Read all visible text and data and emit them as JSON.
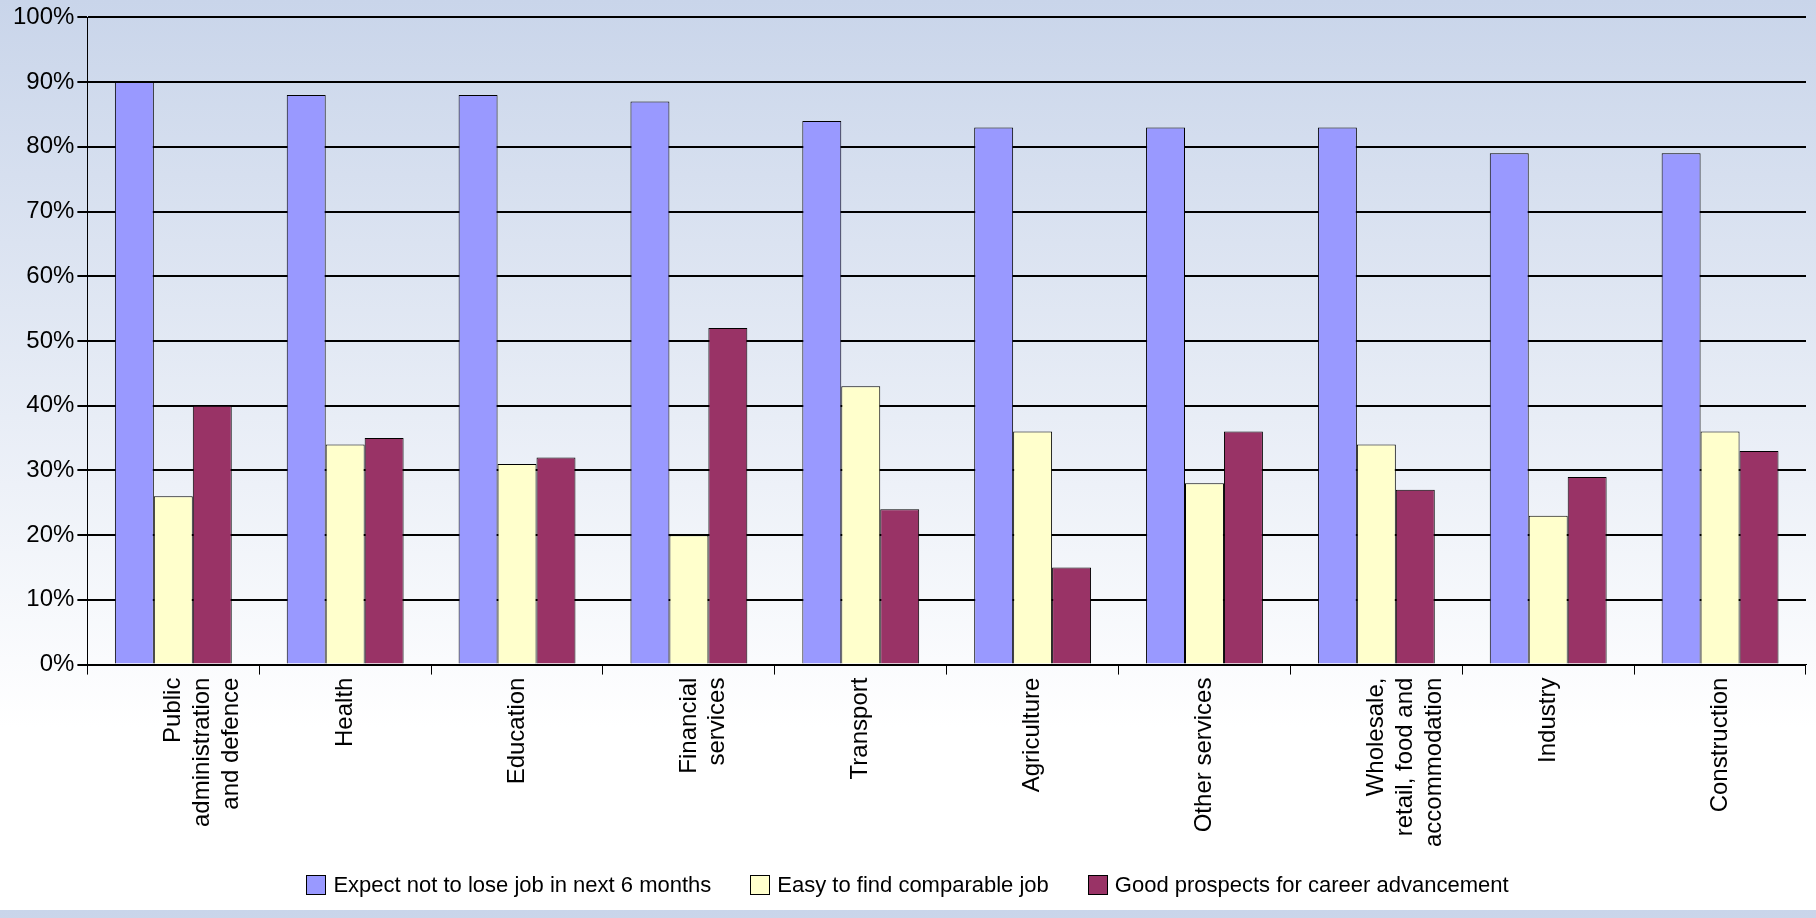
{
  "chart_data": {
    "type": "bar",
    "categories": [
      "Public administration and defence",
      "Health",
      "Education",
      "Financial services",
      "Transport",
      "Agriculture",
      "Other services",
      "Wholesale, retail, food and accommodation",
      "Industry",
      "Construction"
    ],
    "series": [
      {
        "name": "Expect not to lose job in next 6 months",
        "color": "#9999ff",
        "values": [
          90,
          88,
          88,
          87,
          84,
          83,
          83,
          83,
          79,
          79
        ]
      },
      {
        "name": "Easy to find comparable job",
        "color": "#ffffcc",
        "values": [
          26,
          34,
          31,
          20,
          43,
          36,
          28,
          34,
          23,
          36
        ]
      },
      {
        "name": "Good prospects for career advancement",
        "color": "#993366",
        "values": [
          40,
          35,
          32,
          52,
          24,
          15,
          36,
          27,
          29,
          33
        ]
      }
    ],
    "ylim": [
      0,
      100
    ],
    "yticks": [
      {
        "value": 0,
        "label": "0%"
      },
      {
        "value": 10,
        "label": "10%"
      },
      {
        "value": 20,
        "label": "20%"
      },
      {
        "value": 30,
        "label": "30%"
      },
      {
        "value": 40,
        "label": "40%"
      },
      {
        "value": 50,
        "label": "50%"
      },
      {
        "value": 60,
        "label": "60%"
      },
      {
        "value": 70,
        "label": "70%"
      },
      {
        "value": 80,
        "label": "80%"
      },
      {
        "value": 90,
        "label": "90%"
      },
      {
        "value": 100,
        "label": "100%"
      }
    ],
    "grid": "y",
    "legend": "bottom"
  }
}
